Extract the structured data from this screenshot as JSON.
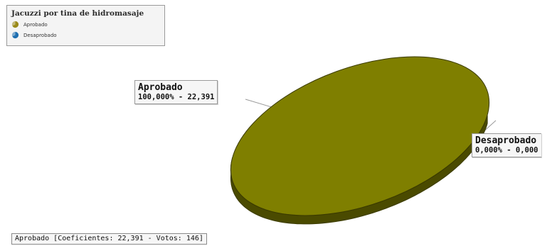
{
  "chart_data": {
    "type": "pie",
    "title": "Jacuzzi por tina de hidromasaje",
    "legend_position": "top-left",
    "slices": [
      {
        "name": "Aprobado",
        "value": 22.391,
        "percent": 100.0,
        "label": "100,000% - 22,391",
        "color": "#7f7f00",
        "legend_icon_color": "#9a8a1a"
      },
      {
        "name": "Desaprobado",
        "value": 0.0,
        "percent": 0.0,
        "label": "0,000% - 0,000",
        "color": "#1f5fa0",
        "legend_icon_color": "#1f6fb0"
      }
    ],
    "colors": {
      "top": "#7f7f00",
      "side": "#4a4a00",
      "edge": "#3a3a00"
    }
  },
  "status_bar": {
    "text": "Aprobado [Coeficientes:  22,391 - Votos: 146]"
  }
}
